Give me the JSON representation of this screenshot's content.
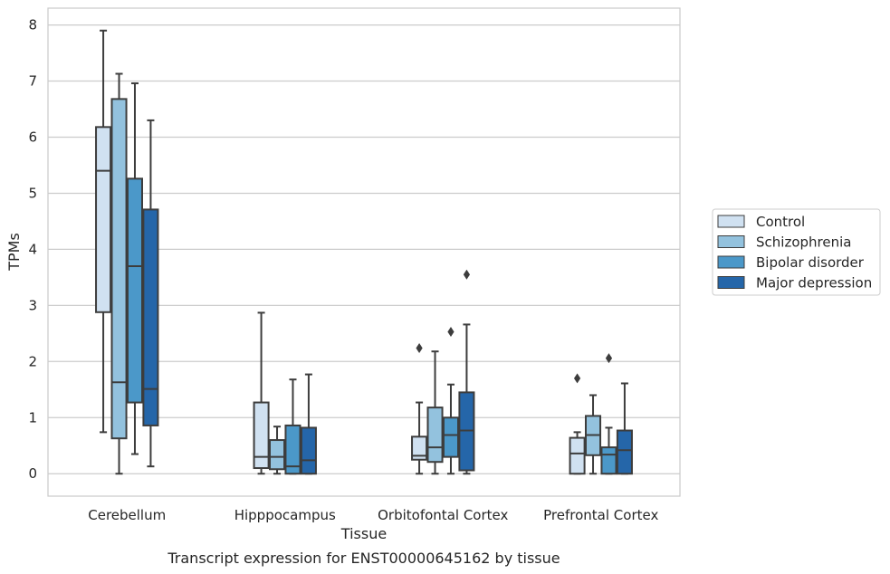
{
  "caption": "Transcript expression for ENST00000645162 by tissue",
  "chart_data": {
    "type": "boxplot",
    "xlabel": "Tissue",
    "ylabel": "TPMs",
    "ylim": [
      -0.4,
      8.3
    ],
    "yticks": [
      0,
      1,
      2,
      3,
      4,
      5,
      6,
      7,
      8
    ],
    "grid": "horizontal",
    "legend_position": "right",
    "categories": [
      "Cerebellum",
      "Hipppocampus",
      "Orbitofontal Cortex",
      "Prefrontal Cortex"
    ],
    "series": [
      {
        "name": "Control",
        "color": "#d0e1f1",
        "boxes": [
          {
            "whislo": 0.74,
            "q1": 2.88,
            "med": 5.4,
            "q3": 6.18,
            "whishi": 7.9,
            "fliers": []
          },
          {
            "whislo": 0.0,
            "q1": 0.1,
            "med": 0.3,
            "q3": 1.27,
            "whishi": 2.87,
            "fliers": []
          },
          {
            "whislo": 0.0,
            "q1": 0.25,
            "med": 0.32,
            "q3": 0.66,
            "whishi": 1.27,
            "fliers": [
              2.24
            ]
          },
          {
            "whislo": 0.0,
            "q1": 0.0,
            "med": 0.36,
            "q3": 0.64,
            "whishi": 0.74,
            "fliers": [
              1.7
            ]
          }
        ]
      },
      {
        "name": "Schizophrenia",
        "color": "#93c2de",
        "boxes": [
          {
            "whislo": 0.0,
            "q1": 0.63,
            "med": 1.63,
            "q3": 6.68,
            "whishi": 7.13,
            "fliers": []
          },
          {
            "whislo": 0.0,
            "q1": 0.08,
            "med": 0.3,
            "q3": 0.6,
            "whishi": 0.84,
            "fliers": []
          },
          {
            "whislo": 0.0,
            "q1": 0.21,
            "med": 0.47,
            "q3": 1.18,
            "whishi": 2.18,
            "fliers": []
          },
          {
            "whislo": 0.0,
            "q1": 0.33,
            "med": 0.69,
            "q3": 1.03,
            "whishi": 1.4,
            "fliers": []
          }
        ]
      },
      {
        "name": "Bipolar disorder",
        "color": "#4b98c9",
        "boxes": [
          {
            "whislo": 0.35,
            "q1": 1.27,
            "med": 3.7,
            "q3": 5.26,
            "whishi": 6.96,
            "fliers": []
          },
          {
            "whislo": 0.0,
            "q1": 0.0,
            "med": 0.13,
            "q3": 0.86,
            "whishi": 1.68,
            "fliers": []
          },
          {
            "whislo": 0.0,
            "q1": 0.3,
            "med": 0.69,
            "q3": 1.0,
            "whishi": 1.59,
            "fliers": [
              2.53
            ]
          },
          {
            "whislo": 0.0,
            "q1": 0.0,
            "med": 0.34,
            "q3": 0.47,
            "whishi": 0.82,
            "fliers": [
              2.06
            ]
          }
        ]
      },
      {
        "name": "Major depression",
        "color": "#2566a9",
        "boxes": [
          {
            "whislo": 0.13,
            "q1": 0.86,
            "med": 1.51,
            "q3": 4.71,
            "whishi": 6.3,
            "fliers": []
          },
          {
            "whislo": 0.0,
            "q1": 0.0,
            "med": 0.24,
            "q3": 0.82,
            "whishi": 1.77,
            "fliers": []
          },
          {
            "whislo": 0.0,
            "q1": 0.06,
            "med": 0.77,
            "q3": 1.45,
            "whishi": 2.66,
            "fliers": [
              3.55
            ]
          },
          {
            "whislo": 0.0,
            "q1": 0.0,
            "med": 0.42,
            "q3": 0.77,
            "whishi": 1.61,
            "fliers": []
          }
        ]
      }
    ]
  }
}
